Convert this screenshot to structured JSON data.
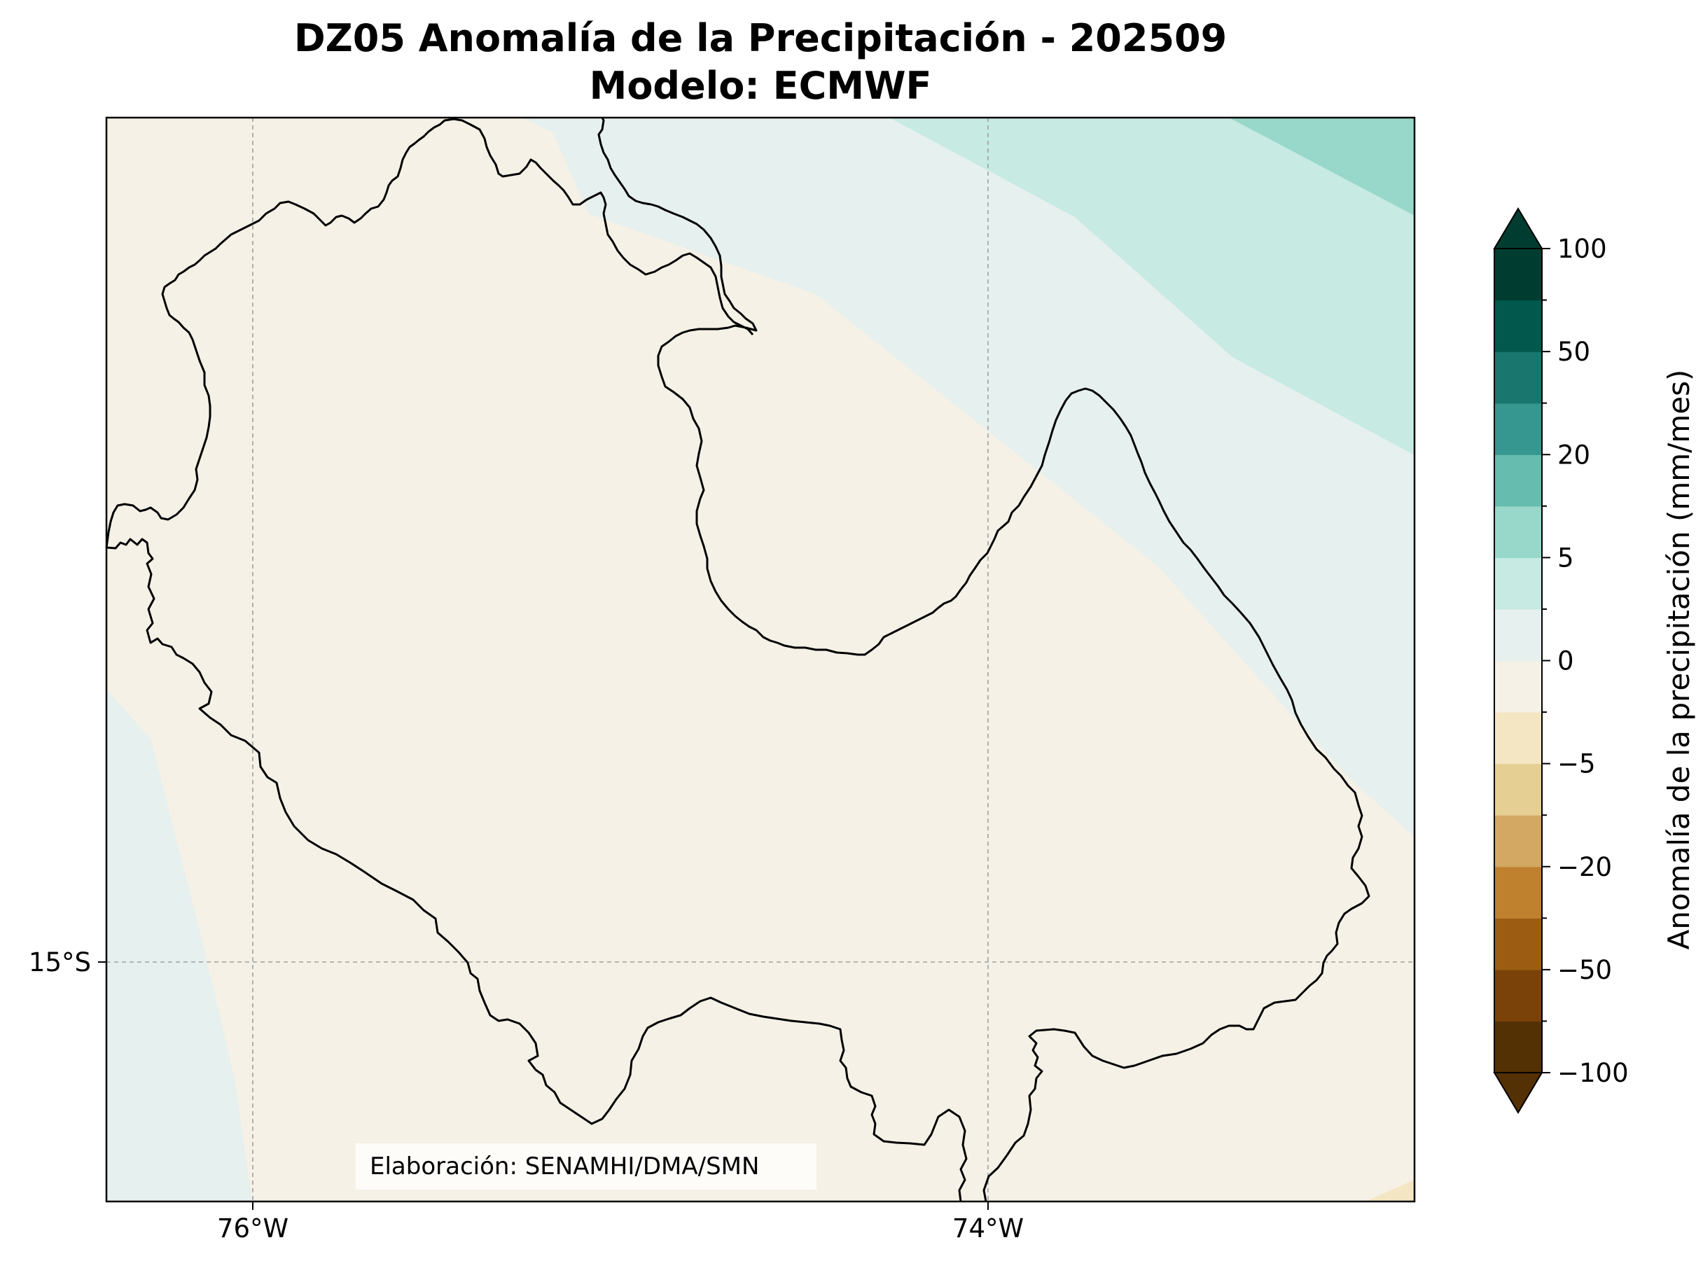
{
  "title": {
    "line1": "DZ05 Anomalía de la Precipitación - 202509",
    "line2": "Modelo: ECMWF"
  },
  "map": {
    "region": "DZ05",
    "longitude_ticks": [
      "76°W",
      "74°W"
    ],
    "latitude_ticks": [
      "15°S"
    ],
    "credit": "Elaboración: SENAMHI/DMA/SMN",
    "gridlines": true
  },
  "colorbar": {
    "label": "Anomalía de la precipitación (mm/mes)",
    "tick_labels": [
      "100",
      "50",
      "20",
      "5",
      "0",
      "−5",
      "−20",
      "−50",
      "−100"
    ],
    "levels": [
      -100,
      -75,
      -50,
      -30,
      -20,
      -10,
      -5,
      -2,
      0,
      2,
      5,
      10,
      20,
      30,
      50,
      75,
      100
    ],
    "colors": [
      "#543005",
      "#7a4209",
      "#9c5d12",
      "#bf812d",
      "#d2a863",
      "#e6cf92",
      "#f4e6c2",
      "#f5f1e6",
      "#e6f0ee",
      "#c7eae3",
      "#98d8ca",
      "#66bcae",
      "#35978f",
      "#18766e",
      "#02584d",
      "#003d30"
    ],
    "extend": "both"
  },
  "field_colors": {
    "land_near_zero_dry": "#f5f1e6",
    "near_zero_wet": "#e6f0ee",
    "wet_light": "#c7eae3",
    "wet_medium": "#98d8ca",
    "dry_light": "#f4e6c2"
  }
}
